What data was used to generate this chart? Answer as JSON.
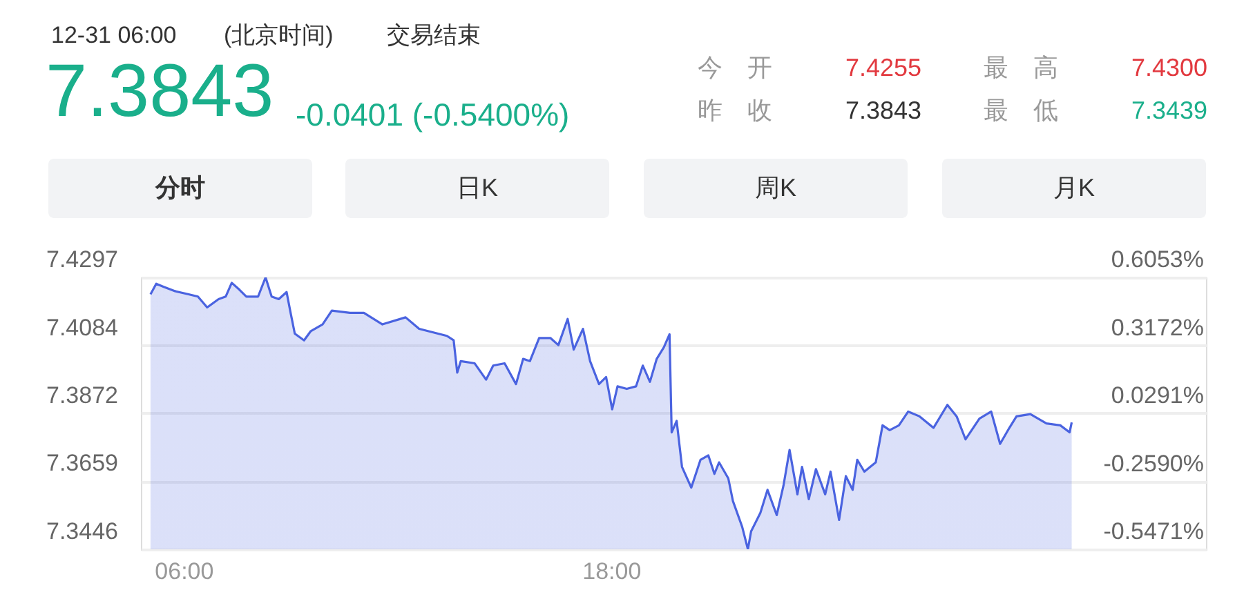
{
  "chart_data": {
    "type": "area",
    "title": "7.3843",
    "subtitle": "-0.0401 (-0.5400%)",
    "annotations": [
      "12-31 06:00",
      "(北京时间)",
      "交易结束",
      "今　开",
      "7.4255",
      "最　高",
      "7.4300",
      "昨　收",
      "7.3843",
      "最　低",
      "7.3439",
      "分时",
      "日K",
      "周K",
      "月K"
    ],
    "x": [
      5.07,
      5.23,
      5.43,
      5.76,
      6.14,
      6.4,
      6.66,
      6.98,
      7.18,
      7.35,
      7.57,
      7.76,
      8.09,
      8.3,
      8.47,
      8.67,
      8.89,
      8.99,
      9.12,
      9.38,
      9.57,
      9.9,
      10.16,
      10.67,
      11.06,
      11.58,
      12.23,
      12.61,
      13.39,
      13.58,
      13.68,
      13.78,
      14.17,
      14.49,
      14.69,
      15.01,
      15.33,
      15.53,
      15.72,
      15.98,
      16.3,
      16.52,
      16.78,
      16.95,
      17.21,
      17.41,
      17.66,
      17.86,
      18.03,
      18.18,
      18.44,
      18.7,
      18.89,
      19.09,
      19.28,
      19.48,
      19.64,
      19.7,
      19.84,
      19.99,
      20.25,
      20.51,
      20.73,
      20.9,
      21.03,
      21.29,
      21.42,
      21.68,
      21.84,
      21.93,
      22.19,
      22.39,
      22.65,
      22.84,
      23.01,
      23.23,
      23.36,
      23.55,
      23.75,
      24.01,
      24.16,
      24.4,
      24.59,
      24.78,
      24.91,
      25.11,
      25.43,
      25.62,
      25.82,
      26.08,
      26.34,
      26.66,
      27.05,
      27.44,
      27.7,
      27.95,
      28.34,
      28.67,
      28.92,
      29.18,
      29.38,
      29.77,
      30.22,
      30.61,
      30.87,
      30.93
    ],
    "series": [
      {
        "color": "#4a63e0",
        "values": [
          7.4244,
          7.4277,
          7.4268,
          7.4254,
          7.4244,
          7.4237,
          7.4203,
          7.4229,
          7.4237,
          7.428,
          7.4258,
          7.4237,
          7.4237,
          7.4297,
          7.4237,
          7.4229,
          7.4251,
          7.4193,
          7.4121,
          7.41,
          7.4129,
          7.415,
          7.4193,
          7.4186,
          7.4186,
          7.415,
          7.4172,
          7.4136,
          7.4114,
          7.41,
          7.3999,
          7.4035,
          7.4028,
          7.3977,
          7.4021,
          7.4028,
          7.3963,
          7.4042,
          7.4035,
          7.4107,
          7.4107,
          7.4085,
          7.4167,
          7.4071,
          7.4136,
          7.4035,
          7.3963,
          7.3985,
          7.3884,
          7.3956,
          7.3948,
          7.3956,
          7.4021,
          7.397,
          7.4042,
          7.4078,
          7.4119,
          7.3812,
          7.3848,
          7.3704,
          7.3639,
          7.3726,
          7.374,
          7.3682,
          7.3718,
          7.3668,
          7.3597,
          7.3516,
          7.3446,
          7.3502,
          7.356,
          7.3632,
          7.3553,
          7.3646,
          7.3757,
          7.3618,
          7.3704,
          7.3603,
          7.3697,
          7.3618,
          7.3689,
          7.3538,
          7.3675,
          7.3632,
          7.3726,
          7.3689,
          7.3718,
          7.3834,
          7.3819,
          7.3834,
          7.3877,
          7.3862,
          7.3826,
          7.3898,
          7.3862,
          7.379,
          7.3855,
          7.3877,
          7.3776,
          7.3826,
          7.3862,
          7.3869,
          7.384,
          7.3834,
          7.3812,
          7.3843
        ]
      }
    ],
    "xlim": [
      4.8,
      34.7
    ],
    "xticks": [
      {
        "value": 6,
        "label": "06:00"
      },
      {
        "value": 18,
        "label": "18:00"
      }
    ],
    "ylim": [
      7.3446,
      7.4297
    ],
    "yticks": [
      7.4297,
      7.4084,
      7.3872,
      7.3659,
      7.3446
    ],
    "y2lim": [
      -0.5471,
      0.6053
    ],
    "y2ticks": [
      {
        "value": 0.6053,
        "label": "0.6053%"
      },
      {
        "value": 0.3172,
        "label": "0.3172%"
      },
      {
        "value": 0.0291,
        "label": "0.0291%"
      },
      {
        "value": -0.259,
        "label": "-0.2590%"
      },
      {
        "value": -0.5471,
        "label": "-0.5471%"
      }
    ],
    "grid": "y"
  }
}
